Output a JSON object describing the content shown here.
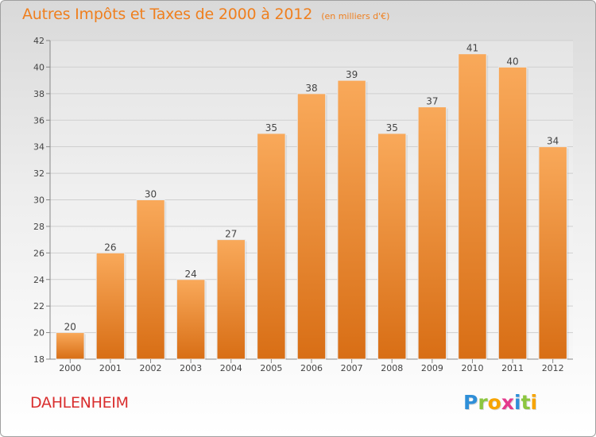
{
  "title": "Autres Impôts et Taxes de 2000 à 2012",
  "subtitle": "(en milliers d'€)",
  "commune": "DAHLENHEIM",
  "logo": {
    "text": "Proxiti",
    "letters": [
      {
        "char": "P",
        "color": "#2f8fd8"
      },
      {
        "char": "r",
        "color": "#8cc63f"
      },
      {
        "char": "o",
        "color": "#f7a400"
      },
      {
        "char": "x",
        "color": "#e43a8c"
      },
      {
        "char": "i",
        "color": "#2f8fd8"
      },
      {
        "char": "t",
        "color": "#8cc63f"
      },
      {
        "char": "i",
        "color": "#f7a400"
      }
    ]
  },
  "colors": {
    "bar_top": "#f9a95a",
    "bar_bottom": "#d86e15",
    "accent": "#ef7f1e",
    "grid": "#cfcfcf",
    "axis_text": "#444444"
  },
  "chart_data": {
    "type": "bar",
    "categories": [
      "2000",
      "2001",
      "2002",
      "2003",
      "2004",
      "2005",
      "2006",
      "2007",
      "2008",
      "2009",
      "2010",
      "2011",
      "2012"
    ],
    "values": [
      20,
      26,
      30,
      24,
      27,
      35,
      38,
      39,
      35,
      37,
      41,
      40,
      34
    ],
    "ylim": [
      18,
      42
    ],
    "yticks": [
      18,
      20,
      22,
      24,
      26,
      28,
      30,
      32,
      34,
      36,
      38,
      40,
      42
    ],
    "grid": true,
    "data_labels": true
  }
}
